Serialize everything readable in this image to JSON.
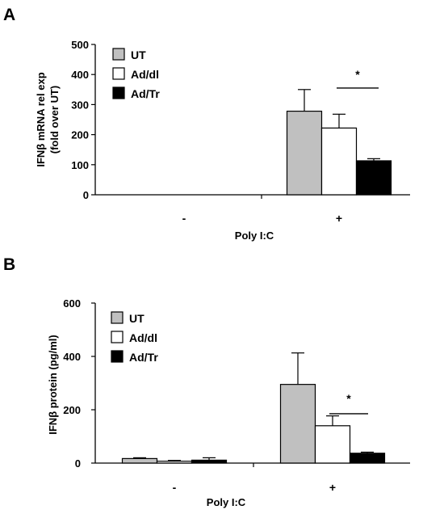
{
  "chart_data": [
    {
      "panel": "A",
      "type": "bar",
      "xlabel": "Poly I:C",
      "ylabel": [
        "IFNβ mRNA rel exp",
        "(fold over UT)"
      ],
      "ylim": [
        0,
        500
      ],
      "yticks": [
        0,
        100,
        200,
        300,
        400,
        500
      ],
      "categories": [
        "-",
        "+"
      ],
      "series": [
        {
          "name": "UT",
          "color": "#c0c0c0",
          "values": [
            0,
            278
          ],
          "errors": [
            0,
            72
          ]
        },
        {
          "name": "Ad/dl",
          "color": "#ffffff",
          "values": [
            0,
            222
          ],
          "errors": [
            0,
            46
          ]
        },
        {
          "name": "Ad/Tr",
          "color": "#000000",
          "values": [
            0,
            113
          ],
          "errors": [
            0,
            7
          ]
        }
      ],
      "legend": "top-left",
      "annotation": "*",
      "grid": false
    },
    {
      "panel": "B",
      "type": "bar",
      "xlabel": "Poly I:C",
      "ylabel": [
        "IFNβ protein (pg/ml)"
      ],
      "ylim": [
        0,
        600
      ],
      "yticks": [
        0,
        200,
        400,
        600
      ],
      "categories": [
        "-",
        "+"
      ],
      "series": [
        {
          "name": "UT",
          "color": "#c0c0c0",
          "values": [
            17,
            295
          ],
          "errors": [
            3,
            118
          ]
        },
        {
          "name": "Ad/dl",
          "color": "#ffffff",
          "values": [
            7,
            140
          ],
          "errors": [
            3,
            37
          ]
        },
        {
          "name": "Ad/Tr",
          "color": "#000000",
          "values": [
            11,
            37
          ],
          "errors": [
            9,
            4
          ]
        }
      ],
      "legend": "top-left",
      "annotation": "*",
      "grid": false
    }
  ]
}
